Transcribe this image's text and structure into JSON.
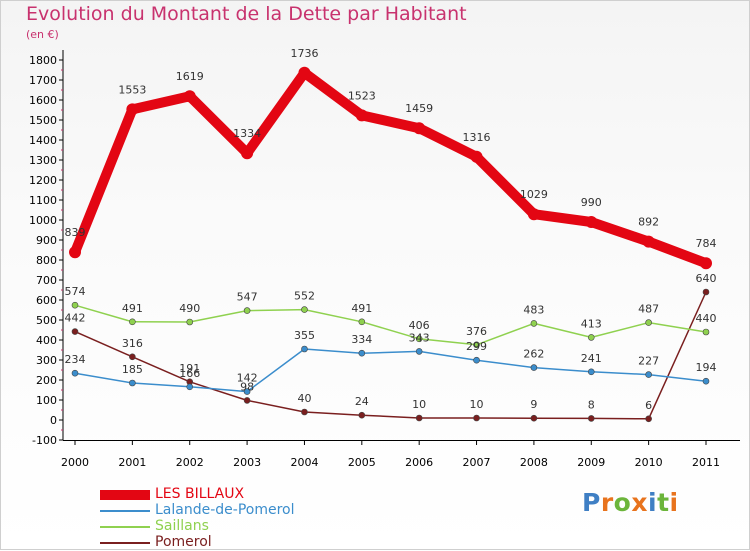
{
  "header": {
    "title": "Evolution du Montant de la Dette par Habitant",
    "unit": "(en €)"
  },
  "brand": {
    "logo_text": "Proxiti",
    "letter_colors": [
      "#3f7fc4",
      "#e8731d",
      "#6cb53b",
      "#e8731d",
      "#3f7fc4",
      "#6cb53b",
      "#e8731d"
    ]
  },
  "colors": {
    "title": "#c8326e",
    "les_billaux": "#e30613",
    "lalande": "#3b8dcc",
    "saillans": "#8fd14f",
    "pomerol": "#7a1f1f"
  },
  "chart_data": {
    "type": "line",
    "title": "Evolution du Montant de la Dette par Habitant",
    "subtitle": "(en €)",
    "xlabel": "",
    "ylabel": "",
    "x": [
      "2000",
      "2001",
      "2002",
      "2003",
      "2004",
      "2005",
      "2006",
      "2007",
      "2008",
      "2009",
      "2010",
      "2011"
    ],
    "ylim": [
      -100,
      1800
    ],
    "ytick_step": 100,
    "grid": false,
    "legend_position": "bottom-left",
    "series": [
      {
        "name": "LES BILLAUX",
        "color": "#e30613",
        "values": [
          839,
          1553,
          1619,
          1334,
          1736,
          1523,
          1459,
          1316,
          1029,
          990,
          892,
          784
        ],
        "labels": [
          "839",
          "1553",
          "1619",
          "1334",
          "1736",
          "1523",
          "1459",
          "1316",
          "1029",
          "990",
          "892",
          "784"
        ]
      },
      {
        "name": "Lalande-de-Pomerol",
        "color": "#3b8dcc",
        "values": [
          234,
          185,
          166,
          142,
          355,
          334,
          343,
          299,
          262,
          241,
          227,
          194
        ],
        "labels": [
          "234",
          "185",
          "166",
          "142",
          "355",
          "334",
          "343",
          "299",
          "262",
          "241",
          "227",
          "194"
        ]
      },
      {
        "name": "Saillans",
        "color": "#8fd14f",
        "values": [
          574,
          491,
          490,
          547,
          552,
          491,
          406,
          376,
          483,
          413,
          487,
          440
        ],
        "labels": [
          "574",
          "491",
          "490",
          "547",
          "552",
          "491",
          "406",
          "376",
          "483",
          "413",
          "487",
          "440"
        ]
      },
      {
        "name": "Pomerol",
        "color": "#7a1f1f",
        "values": [
          442,
          316,
          191,
          98,
          40,
          24,
          10,
          10,
          9,
          8,
          6,
          640
        ],
        "labels": [
          "442",
          "316",
          "191",
          "98",
          "40",
          "24",
          "10",
          "10",
          "9",
          "8",
          "6",
          "640"
        ]
      }
    ]
  }
}
